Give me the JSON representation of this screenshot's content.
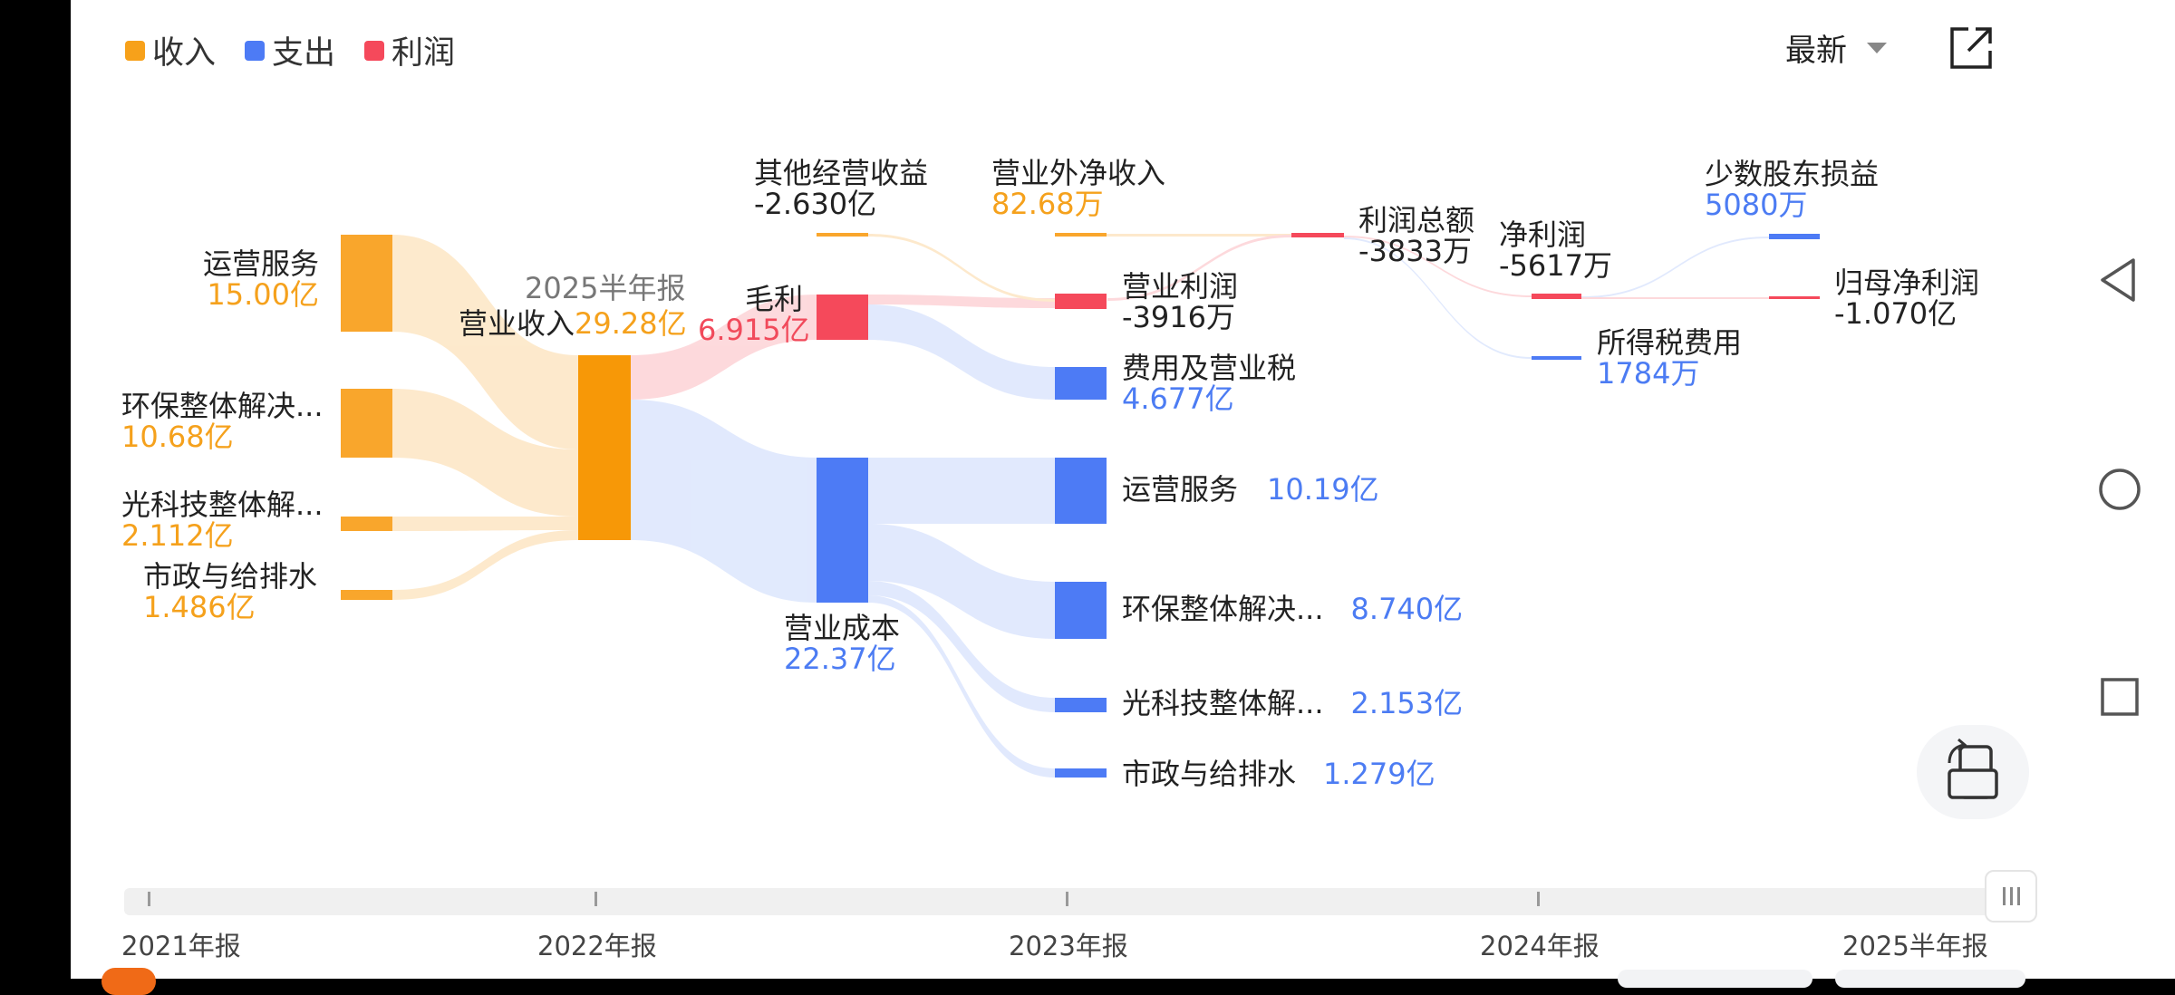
{
  "legend": [
    {
      "label": "收入",
      "color": "#f7a11a"
    },
    {
      "label": "支出",
      "color": "#4d7bf5"
    },
    {
      "label": "利润",
      "color": "#f5495b"
    }
  ],
  "toolbar": {
    "sort_label": "最新",
    "sort_icon": "caret-down-icon",
    "share_icon": "share-external-icon",
    "rotate_icon": "screen-rotate-icon"
  },
  "period_label": "2025半年报",
  "nodes": {
    "rev1": {
      "name": "运营服务",
      "value": "15.00亿"
    },
    "rev2": {
      "name": "环保整体解决...",
      "value": "10.68亿"
    },
    "rev3": {
      "name": "光科技整体解...",
      "value": "2.112亿"
    },
    "rev4": {
      "name": "市政与给排水",
      "value": "1.486亿"
    },
    "revenue": {
      "name": "营业收入",
      "value": "29.28亿"
    },
    "gross": {
      "name": "毛利",
      "value": "6.915亿"
    },
    "cost": {
      "name": "营业成本",
      "value": "22.37亿"
    },
    "other": {
      "name": "其他经营收益",
      "value": "-2.630亿"
    },
    "nonop": {
      "name": "营业外净收入",
      "value": "82.68万"
    },
    "opprofit": {
      "name": "营业利润",
      "value": "-3916万"
    },
    "fee": {
      "name": "费用及营业税",
      "value": "4.677亿"
    },
    "cost1": {
      "name": "运营服务",
      "value": "10.19亿"
    },
    "cost2": {
      "name": "环保整体解决...",
      "value": "8.740亿"
    },
    "cost3": {
      "name": "光科技整体解...",
      "value": "2.153亿"
    },
    "cost4": {
      "name": "市政与给排水",
      "value": "1.279亿"
    },
    "total": {
      "name": "利润总额",
      "value": "-3833万"
    },
    "net": {
      "name": "净利润",
      "value": "-5617万"
    },
    "tax": {
      "name": "所得税费用",
      "value": "1784万"
    },
    "minority": {
      "name": "少数股东损益",
      "value": "5080万"
    },
    "parent": {
      "name": "归母净利润",
      "value": "-1.070亿"
    }
  },
  "timeline": {
    "ticks": [
      "2021年报",
      "2022年报",
      "2023年报",
      "2024年报",
      "2025半年报"
    ],
    "handle_icon": "drag-handle-icon"
  },
  "navbar": {
    "back_icon": "back-triangle-icon",
    "home_icon": "home-circle-icon",
    "recents_icon": "recents-square-icon"
  }
}
